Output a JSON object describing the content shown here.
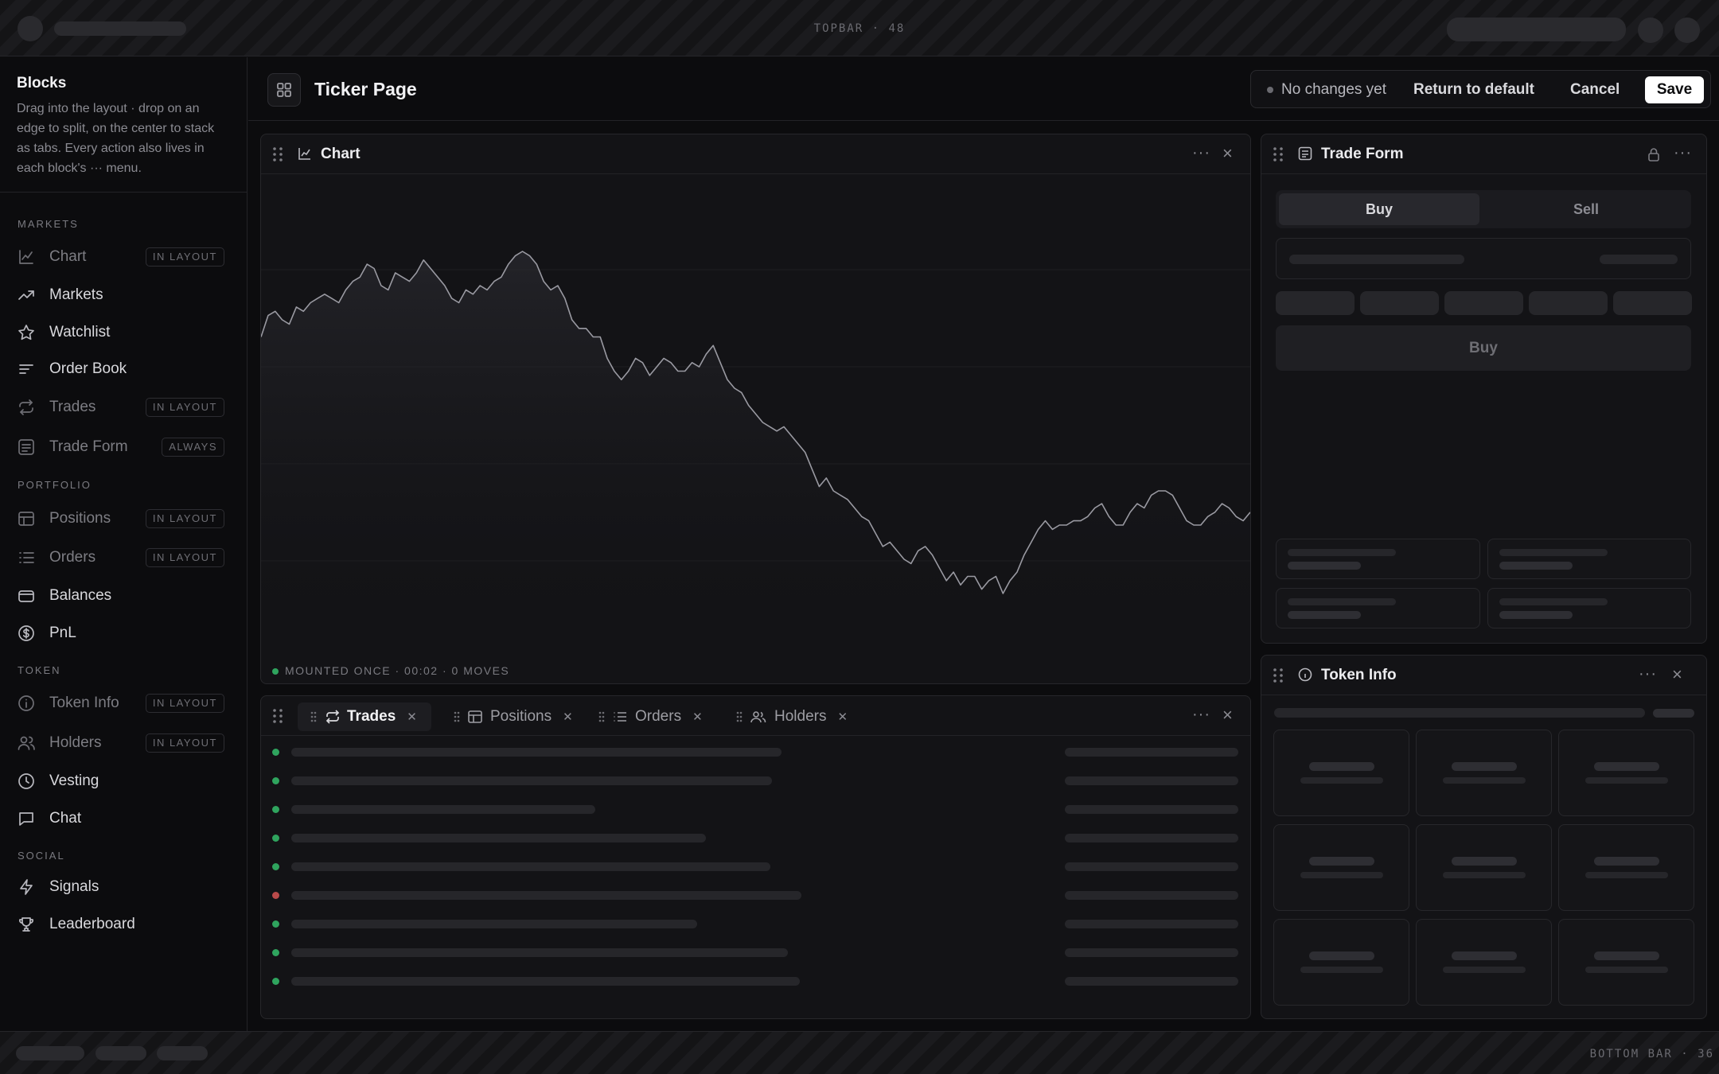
{
  "topbar": {
    "label": "TOPBAR · 48"
  },
  "bottombar": {
    "label": "BOTTOM BAR · 36"
  },
  "sidebar": {
    "title": "Blocks",
    "description": "Drag into the layout · drop on an edge to split, on the center to stack as tabs. Every action also lives in each block's ··· menu.",
    "sections": [
      {
        "label": "MARKETS"
      },
      {
        "label": "PORTFOLIO"
      },
      {
        "label": "TOKEN"
      },
      {
        "label": "SOCIAL"
      }
    ],
    "items": [
      {
        "label": "Chart",
        "badge": "IN LAYOUT",
        "icon": "chart-icon"
      },
      {
        "label": "Markets",
        "badge": "",
        "icon": "trending-up-icon"
      },
      {
        "label": "Watchlist",
        "badge": "",
        "icon": "star-icon"
      },
      {
        "label": "Order Book",
        "badge": "",
        "icon": "order-book-icon"
      },
      {
        "label": "Trades",
        "badge": "IN LAYOUT",
        "icon": "repeat-icon"
      },
      {
        "label": "Trade Form",
        "badge": "ALWAYS",
        "icon": "form-icon"
      },
      {
        "label": "Positions",
        "badge": "IN LAYOUT",
        "icon": "table-icon"
      },
      {
        "label": "Orders",
        "badge": "IN LAYOUT",
        "icon": "list-icon"
      },
      {
        "label": "Balances",
        "badge": "",
        "icon": "wallet-icon"
      },
      {
        "label": "PnL",
        "badge": "",
        "icon": "dollar-icon"
      },
      {
        "label": "Token Info",
        "badge": "IN LAYOUT",
        "icon": "info-icon"
      },
      {
        "label": "Holders",
        "badge": "IN LAYOUT",
        "icon": "users-icon"
      },
      {
        "label": "Vesting",
        "badge": "",
        "icon": "clock-icon"
      },
      {
        "label": "Chat",
        "badge": "",
        "icon": "chat-icon"
      },
      {
        "label": "Signals",
        "badge": "",
        "icon": "bolt-icon"
      },
      {
        "label": "Leaderboard",
        "badge": "",
        "icon": "trophy-icon"
      }
    ]
  },
  "header": {
    "title": "Ticker Page",
    "status": "No changes yet",
    "return_label": "Return to default",
    "cancel_label": "Cancel",
    "save_label": "Save"
  },
  "chart_panel": {
    "title": "Chart",
    "status": "MOUNTED ONCE · 00:02 · 0 MOVES"
  },
  "trades_panel": {
    "tabs": [
      {
        "label": "Trades"
      },
      {
        "label": "Positions"
      },
      {
        "label": "Orders"
      },
      {
        "label": "Holders"
      }
    ]
  },
  "trade_form": {
    "title": "Trade Form",
    "buy_tab": "Buy",
    "sell_tab": "Sell",
    "submit_label": "Buy"
  },
  "token_info": {
    "title": "Token Info"
  },
  "colors": {
    "accent": "#ffffff",
    "up": "#2fa45e",
    "down": "#b94a4a",
    "line": "#9a9aa2"
  },
  "chart_data": {
    "type": "line",
    "x": [
      0,
      1,
      2,
      3,
      4,
      5,
      6,
      7,
      8,
      9,
      10,
      11,
      12,
      13,
      14,
      15,
      16,
      17,
      18,
      19,
      20,
      21,
      22,
      23,
      24,
      25,
      26,
      27,
      28,
      29,
      30,
      31,
      32,
      33,
      34,
      35,
      36,
      37,
      38,
      39,
      40,
      41,
      42,
      43,
      44,
      45,
      46,
      47,
      48,
      49,
      50,
      51,
      52,
      53,
      54,
      55,
      56,
      57,
      58,
      59,
      60,
      61,
      62,
      63,
      64,
      65,
      66,
      67,
      68,
      69,
      70,
      71,
      72,
      73,
      74,
      75,
      76,
      77,
      78,
      79,
      80,
      81,
      82,
      83,
      84,
      85,
      86,
      87,
      88,
      89,
      90,
      91,
      92,
      93,
      94,
      95,
      96,
      97,
      98,
      99,
      100,
      101,
      102,
      103,
      104,
      105,
      106,
      107,
      108,
      109,
      110,
      111,
      112,
      113,
      114,
      115,
      116,
      117,
      118,
      119,
      120,
      121,
      122,
      123,
      124,
      125,
      126,
      127,
      128,
      129,
      130,
      131,
      132,
      133,
      134,
      135,
      136,
      137,
      138,
      139,
      140
    ],
    "series": [
      {
        "values": [
          53,
          58,
          59,
          57,
          56,
          60,
          59,
          61,
          62,
          63,
          62,
          61,
          64,
          66,
          67,
          70,
          69,
          65,
          64,
          68,
          67,
          66,
          68,
          71,
          69,
          67,
          65,
          62,
          61,
          64,
          63,
          65,
          64,
          66,
          67,
          70,
          72,
          73,
          72,
          70,
          66,
          64,
          65,
          62,
          57,
          55,
          55,
          53,
          53,
          48,
          45,
          43,
          45,
          48,
          47,
          44,
          46,
          48,
          47,
          45,
          45,
          47,
          46,
          49,
          51,
          47,
          43,
          41,
          40,
          37,
          35,
          33,
          32,
          31,
          32,
          30,
          28,
          26,
          22,
          18,
          20,
          17,
          16,
          15,
          13,
          11,
          10,
          7,
          4,
          5,
          3,
          1,
          0,
          3,
          4,
          2,
          -1,
          -4,
          -2,
          -5,
          -3,
          -3,
          -6,
          -4,
          -3,
          -7,
          -4,
          -2,
          2,
          5,
          8,
          10,
          8,
          9,
          9,
          10,
          10,
          11,
          13,
          14,
          11,
          9,
          9,
          12,
          14,
          13,
          16,
          17,
          17,
          16,
          13,
          10,
          9,
          9,
          11,
          12,
          14,
          13,
          11,
          10,
          12
        ]
      }
    ]
  }
}
